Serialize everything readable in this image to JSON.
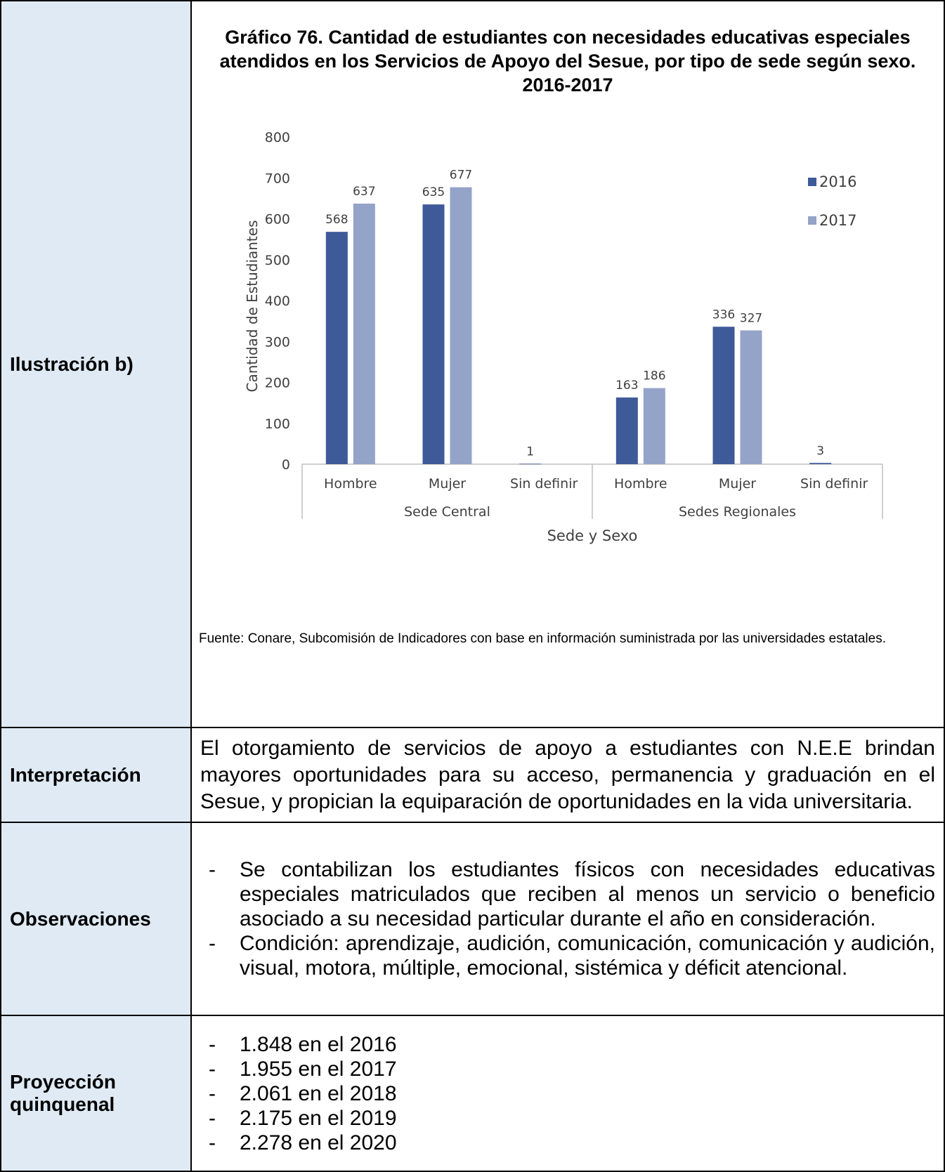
{
  "rows": {
    "illustration": {
      "label": "Ilustración b)",
      "chart_title": "Gráfico 76. Cantidad de estudiantes con necesidades educativas especiales atendidos en los Servicios de Apoyo del Sesue, por tipo de sede según sexo. 2016-2017",
      "source": "Fuente: Conare, Subcomisión de Indicadores con base en información suministrada por las universidades estatales."
    },
    "interpretation": {
      "label": "Interpretación",
      "text": "El otorgamiento de servicios de apoyo a estudiantes con N.E.E brindan mayores oportunidades para su acceso, permanencia y graduación en el Sesue, y propician la equiparación de oportunidades en la vida universitaria."
    },
    "observations": {
      "label": "Observaciones",
      "items": [
        "Se contabilizan los estudiantes físicos con necesidades educativas especiales matriculados que reciben al menos un servicio o beneficio asociado a su necesidad particular durante el año en consideración.",
        "Condición: aprendizaje, audición, comunicación, comunicación y audición, visual, motora, múltiple, emocional, sistémica y déficit atencional."
      ]
    },
    "projection": {
      "label": "Proyección quinquenal",
      "items": [
        "1.848 en el 2016",
        "1.955 en el 2017",
        "2.061 en el 2018",
        "2.175 en el 2019",
        "2.278 en el 2020"
      ]
    }
  },
  "dash": "-",
  "colors": {
    "label_bg": "#dfeaf5",
    "series_2016": "#3f5a99",
    "series_2017": "#94a3c8",
    "axis": "#bfbfbf",
    "chart_text": "#404040"
  },
  "chart_data": {
    "type": "bar",
    "groups": [
      {
        "name": "Sede Central",
        "categories": [
          "Hombre",
          "Mujer",
          "Sin definir"
        ]
      },
      {
        "name": "Sedes Regionales",
        "categories": [
          "Hombre",
          "Mujer",
          "Sin definir"
        ]
      }
    ],
    "categories": [
      "Hombre",
      "Mujer",
      "Sin definir",
      "Hombre",
      "Mujer",
      "Sin definir"
    ],
    "series": [
      {
        "name": "2016",
        "values": [
          568,
          635,
          1,
          163,
          336,
          3
        ]
      },
      {
        "name": "2017",
        "values": [
          637,
          677,
          null,
          186,
          327,
          null
        ]
      }
    ],
    "data_labels": [
      [
        "568",
        "635",
        "1",
        "163",
        "336",
        "3"
      ],
      [
        "637",
        "677",
        "",
        "186",
        "327",
        ""
      ]
    ],
    "xlabel": "Sede y Sexo",
    "ylabel": "Cantidad de Estudiantes",
    "ylim": [
      0,
      800
    ],
    "yticks": [
      "0",
      "100",
      "200",
      "300",
      "400",
      "500",
      "600",
      "700",
      "800"
    ],
    "grid": false,
    "legend_position": "top-right"
  }
}
